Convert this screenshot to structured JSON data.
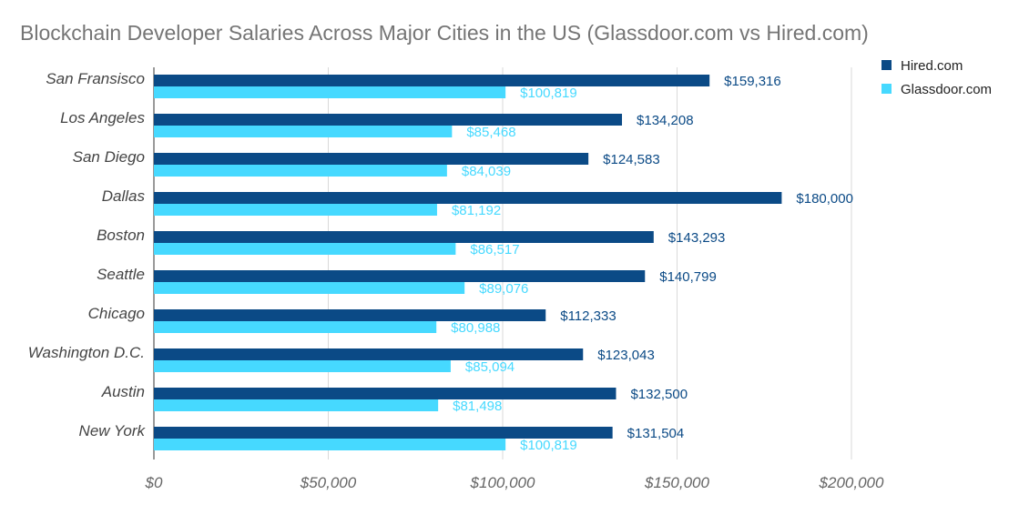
{
  "chart_data": {
    "type": "bar",
    "orientation": "horizontal",
    "title": "Blockchain Developer Salaries Across Major Cities in the US (Glassdoor.com vs Hired.com)",
    "categories": [
      "San Fransisco",
      "Los Angeles",
      "San Diego",
      "Dallas",
      "Boston",
      "Seattle",
      "Chicago",
      "Washington D.C.",
      "Austin",
      "New York"
    ],
    "series": [
      {
        "name": "Hired.com",
        "color": "#0b4a86",
        "values": [
          159316,
          134208,
          124583,
          180000,
          143293,
          140799,
          112333,
          123043,
          132500,
          131504
        ],
        "labels": [
          "$159,316",
          "$134,208",
          "$124,583",
          "$180,000",
          "$143,293",
          "$140,799",
          "$112,333",
          "$123,043",
          "$132,500",
          "$131,504"
        ]
      },
      {
        "name": "Glassdoor.com",
        "color": "#46d9ff",
        "values": [
          100819,
          85468,
          84039,
          81192,
          86517,
          89076,
          80988,
          85094,
          81498,
          100819
        ],
        "labels": [
          "$100,819",
          "$85,468",
          "$84,039",
          "$81,192",
          "$86,517",
          "$89,076",
          "$80,988",
          "$85,094",
          "$81,498",
          "$100,819"
        ]
      }
    ],
    "xlim": [
      0,
      200000
    ],
    "xticks": [
      0,
      50000,
      100000,
      150000,
      200000
    ],
    "xtick_labels": [
      "$0",
      "$50,000",
      "$100,000",
      "$150,000",
      "$200,000"
    ],
    "xlabel": "",
    "ylabel": "",
    "grid": true,
    "legend_position": "top-right"
  }
}
